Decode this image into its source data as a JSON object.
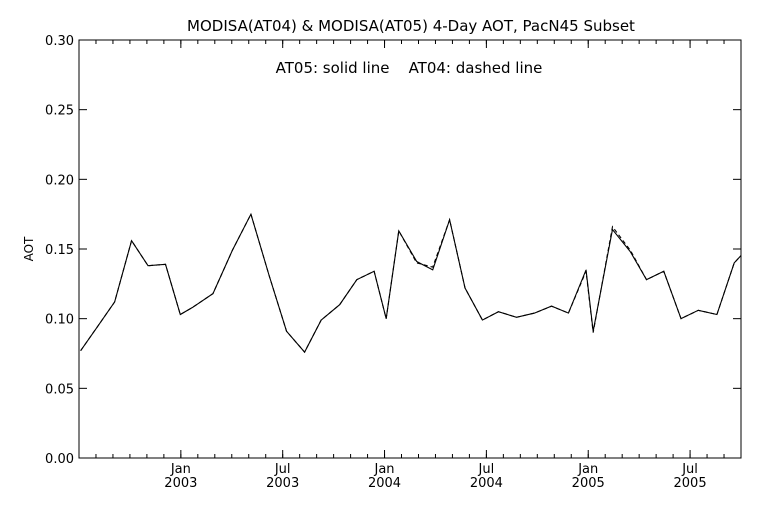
{
  "chart_data": {
    "type": "line",
    "title": "MODISA(AT04) & MODISA(AT05) 4-Day AOT, PacN45 Subset",
    "annotation": "AT05: solid line    AT04: dashed line",
    "xlabel": "",
    "ylabel": "AOT",
    "ylim": [
      0.0,
      0.3
    ],
    "yticks": [
      "0.00",
      "0.05",
      "0.10",
      "0.15",
      "0.20",
      "0.25",
      "0.30"
    ],
    "xlim": [
      "2002-07",
      "2005-10"
    ],
    "xticks": [
      {
        "month": "2003-01",
        "line1": "Jan",
        "line2": "2003"
      },
      {
        "month": "2003-07",
        "line1": "Jul",
        "line2": "2003"
      },
      {
        "month": "2004-01",
        "line1": "Jan",
        "line2": "2004"
      },
      {
        "month": "2004-07",
        "line1": "Jul",
        "line2": "2004"
      },
      {
        "month": "2005-01",
        "line1": "Jan",
        "line2": "2005"
      },
      {
        "month": "2005-07",
        "line1": "Jul",
        "line2": "2005"
      }
    ],
    "grid": false,
    "x": [
      "2002-07-04",
      "2002-08-05",
      "2002-09-04",
      "2002-10-04",
      "2002-11-03",
      "2002-12-04",
      "2002-12-31",
      "2003-01-22",
      "2003-02-26",
      "2003-04-02",
      "2003-05-05",
      "2003-06-07",
      "2003-07-08",
      "2003-08-10",
      "2003-09-09",
      "2003-10-12",
      "2003-11-12",
      "2003-12-13",
      "2004-01-04",
      "2004-01-27",
      "2004-02-27",
      "2004-03-27",
      "2004-04-26",
      "2004-05-24",
      "2004-06-24",
      "2004-07-23",
      "2004-08-25",
      "2004-09-26",
      "2004-10-27",
      "2004-11-26",
      "2004-12-28",
      "2005-01-10",
      "2005-02-13",
      "2005-03-16",
      "2005-04-14",
      "2005-05-15",
      "2005-06-15",
      "2005-07-16",
      "2005-08-19",
      "2005-09-19",
      "2005-10-12"
    ],
    "series": [
      {
        "name": "AT05",
        "style": "solid",
        "values": [
          0.077,
          0.095,
          0.112,
          0.156,
          0.138,
          0.139,
          0.103,
          0.108,
          0.118,
          0.149,
          0.175,
          0.131,
          0.091,
          0.076,
          0.099,
          0.11,
          0.128,
          0.134,
          0.1,
          0.163,
          0.141,
          0.135,
          0.171,
          0.122,
          0.099,
          0.105,
          0.101,
          0.104,
          0.109,
          0.104,
          0.135,
          0.091,
          0.164,
          0.148,
          0.128,
          0.134,
          0.1,
          0.106,
          0.103,
          0.14,
          0.15
        ]
      },
      {
        "name": "AT04",
        "style": "dashed",
        "values": [
          0.077,
          0.095,
          0.112,
          0.156,
          0.138,
          0.139,
          0.103,
          0.108,
          0.118,
          0.149,
          0.175,
          0.131,
          0.091,
          0.076,
          0.099,
          0.11,
          0.128,
          0.134,
          0.1,
          0.163,
          0.14,
          0.137,
          0.171,
          0.122,
          0.099,
          0.105,
          0.101,
          0.104,
          0.109,
          0.104,
          0.134,
          0.09,
          0.166,
          0.149,
          0.128,
          0.134,
          0.1,
          0.106,
          0.103,
          0.14,
          0.15
        ]
      }
    ],
    "colors": {
      "line": "#000000",
      "background": "#ffffff"
    }
  }
}
